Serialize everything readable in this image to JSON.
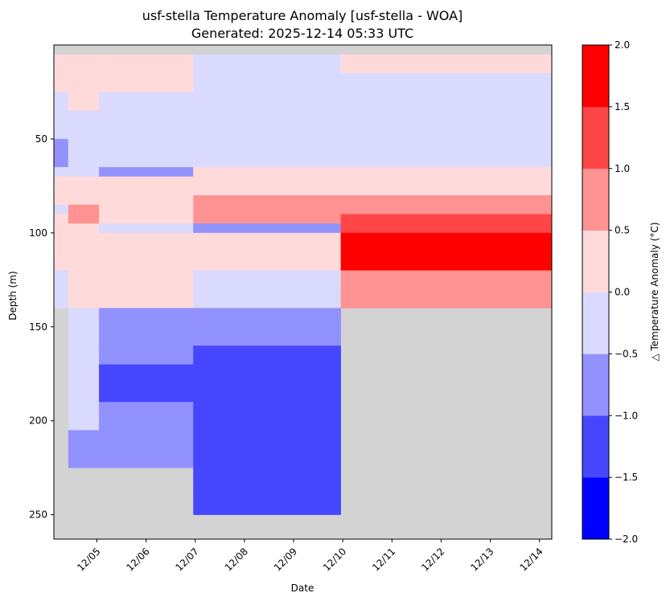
{
  "chart_data": {
    "type": "heatmap",
    "title_line1": "usf-stella Temperature Anomaly [usf-stella - WOA]",
    "title_line2": "Generated: 2025-12-14 05:33 UTC",
    "xlabel": "Date",
    "ylabel": "Depth (m)",
    "colorbar_label": "△ Temperature Anomaly (°C)",
    "x_range": [
      "2025-12-04T03:00",
      "2025-12-14T06:00"
    ],
    "y_range_depth_m": [
      263,
      0
    ],
    "x_ticks": [
      "12/05",
      "12/06",
      "12/07",
      "12/08",
      "12/09",
      "12/10",
      "12/11",
      "12/12",
      "12/13",
      "12/14"
    ],
    "y_ticks": [
      50,
      100,
      150,
      200,
      250
    ],
    "colorbar": {
      "vmin": -2.0,
      "vmax": 2.0,
      "bounds": [
        -2.0,
        -1.5,
        -1.0,
        -0.5,
        0.0,
        0.5,
        1.0,
        1.5,
        2.0
      ],
      "tick_labels": [
        "−2.0",
        "−1.5",
        "−1.0",
        "−0.5",
        "0.0",
        "0.5",
        "1.0",
        "1.5",
        "2.0"
      ],
      "colors": [
        "#0000ff",
        "#4646ff",
        "#9292ff",
        "#dadaff",
        "#ffdada",
        "#ff9292",
        "#ff4646",
        "#ff0000"
      ]
    },
    "no_data_color": "#d3d3d3",
    "depth_bins_m": [
      0,
      5,
      10,
      15,
      20,
      25,
      30,
      35,
      40,
      45,
      50,
      55,
      60,
      65,
      70,
      75,
      80,
      85,
      90,
      95,
      100,
      105,
      110,
      115,
      120,
      125,
      130,
      135,
      140,
      145,
      150,
      155,
      160,
      165,
      170,
      175,
      180,
      185,
      190,
      195,
      200,
      205,
      210,
      215,
      220,
      225,
      230,
      235,
      240,
      245,
      250,
      255,
      260
    ],
    "profiles": [
      {
        "time": "2025-12-04T04:00",
        "anomaly_by_depth": [
          null,
          0.2,
          0.2,
          0.2,
          0.2,
          -0.2,
          -0.2,
          -0.2,
          -0.2,
          -0.2,
          -0.7,
          -0.7,
          -0.7,
          -0.2,
          0.2,
          0.2,
          0.2,
          -0.2,
          0.2,
          0.2,
          0.2,
          0.2,
          0.2,
          0.2,
          -0.2,
          -0.2,
          -0.2,
          -0.2,
          null
        ]
      },
      {
        "time": "2025-12-04T16:00",
        "anomaly_by_depth": [
          null,
          0.2,
          0.2,
          0.2,
          0.2,
          0.2,
          0.2,
          -0.2,
          -0.2,
          -0.2,
          -0.2,
          -0.2,
          -0.2,
          -0.2,
          0.2,
          0.2,
          0.2,
          0.7,
          0.7,
          0.2,
          0.2,
          0.2,
          0.2,
          0.2,
          0.2,
          0.2,
          0.2,
          0.2,
          -0.2,
          -0.2,
          -0.2,
          -0.2,
          -0.2,
          -0.2,
          -0.2,
          -0.2,
          -0.2,
          -0.2,
          -0.2,
          -0.2,
          -0.2,
          -0.7,
          -0.7,
          -0.7,
          -0.7,
          null
        ]
      },
      {
        "time": "2025-12-05T10:00",
        "anomaly_by_depth": [
          null,
          0.2,
          0.2,
          0.2,
          0.2,
          -0.2,
          -0.2,
          -0.2,
          -0.2,
          -0.2,
          -0.2,
          -0.2,
          -0.2,
          -0.7,
          0.2,
          0.2,
          0.2,
          0.2,
          0.2,
          -0.2,
          0.2,
          0.2,
          0.2,
          0.2,
          0.2,
          0.2,
          0.2,
          0.2,
          -0.7,
          -0.7,
          -0.7,
          -0.7,
          -0.7,
          -0.7,
          -1.2,
          -1.2,
          -1.2,
          -1.2,
          -0.7,
          -0.7,
          -0.7,
          -0.7,
          -0.7,
          -0.7,
          -0.7,
          null
        ]
      },
      {
        "time": "2025-12-08T12:00",
        "anomaly_by_depth": [
          null,
          -0.2,
          -0.2,
          -0.2,
          -0.2,
          -0.2,
          -0.2,
          -0.2,
          -0.2,
          -0.2,
          -0.2,
          -0.2,
          -0.2,
          0.2,
          0.2,
          0.2,
          0.7,
          0.7,
          0.7,
          -0.7,
          0.2,
          0.2,
          0.2,
          0.2,
          -0.2,
          -0.2,
          -0.2,
          -0.2,
          -0.7,
          -0.7,
          -0.7,
          -0.7,
          -1.2,
          -1.2,
          -1.2,
          -1.2,
          -1.2,
          -1.2,
          -1.2,
          -1.2,
          -1.2,
          -1.2,
          -1.2,
          -1.2,
          -1.2,
          -1.2,
          -1.2,
          -1.2,
          -1.2,
          -1.2,
          null
        ]
      },
      {
        "time": "2025-12-11T10:00",
        "anomaly_by_depth": [
          null,
          0.2,
          0.2,
          -0.2,
          -0.2,
          -0.2,
          -0.2,
          -0.2,
          -0.2,
          -0.2,
          -0.2,
          -0.2,
          -0.2,
          0.2,
          0.2,
          0.2,
          0.7,
          0.7,
          1.2,
          1.2,
          1.7,
          1.7,
          1.7,
          1.7,
          0.7,
          0.7,
          0.7,
          0.7,
          null
        ]
      }
    ]
  }
}
